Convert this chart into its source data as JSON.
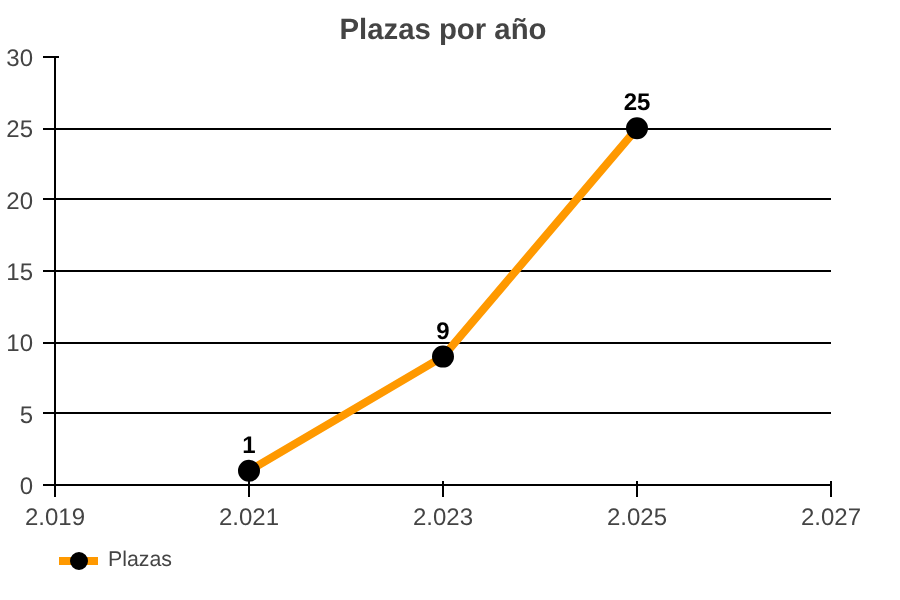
{
  "chart_data": {
    "type": "line",
    "title": "Plazas por año",
    "x": [
      2021,
      2023,
      2025
    ],
    "series": [
      {
        "name": "Plazas",
        "color": "#ff9900",
        "values": [
          1,
          9,
          25
        ]
      }
    ],
    "xlim": [
      2019,
      2027
    ],
    "xticks": [
      {
        "value": 2019,
        "label": "2.019"
      },
      {
        "value": 2021,
        "label": "2.021"
      },
      {
        "value": 2023,
        "label": "2.023"
      },
      {
        "value": 2025,
        "label": "2.025"
      },
      {
        "value": 2027,
        "label": "2.027"
      }
    ],
    "ylim": [
      0,
      30
    ],
    "yticks": [
      0,
      5,
      10,
      15,
      20,
      25,
      30
    ],
    "grid": "y",
    "legend": "bottom left",
    "marker": "circle",
    "line_style": "solid",
    "data_labels": true
  }
}
